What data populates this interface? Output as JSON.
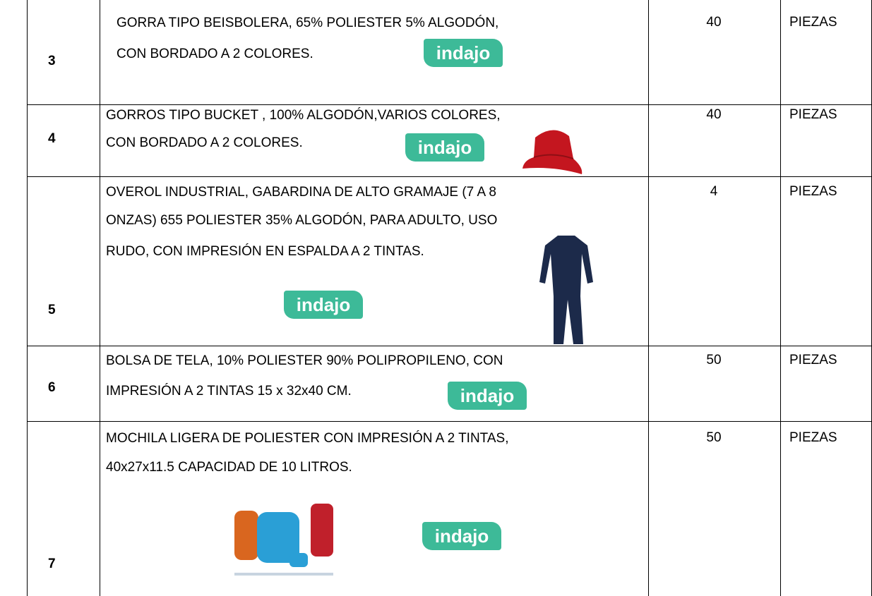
{
  "table": {
    "rows": [
      {
        "number": "3",
        "description": [
          "GORRA TIPO BEISBOLERA, 65% POLIESTER 5% ALGODÓN,",
          "CON BORDADO A 2 COLORES."
        ],
        "quantity": "40",
        "unit": "PIEZAS",
        "logo": "indajo"
      },
      {
        "number": "4",
        "description": [
          "GORROS TIPO BUCKET , 100% ALGODÓN,VARIOS COLORES,",
          "CON BORDADO A 2 COLORES."
        ],
        "quantity": "40",
        "unit": "PIEZAS",
        "logo": "indajo"
      },
      {
        "number": "5",
        "description": [
          "OVEROL INDUSTRIAL, GABARDINA DE ALTO GRAMAJE (7 A 8",
          "ONZAS) 655 POLIESTER 35% ALGODÓN, PARA ADULTO, USO",
          "RUDO, CON IMPRESIÓN EN ESPALDA A 2 TINTAS."
        ],
        "quantity": "4",
        "unit": "PIEZAS",
        "logo": "indajo"
      },
      {
        "number": "6",
        "description": [
          "BOLSA DE TELA, 10% POLIESTER 90% POLIPROPILENO, CON",
          "IMPRESIÓN A 2 TINTAS 15 x 32x40 CM."
        ],
        "quantity": "50",
        "unit": "PIEZAS",
        "logo": "indajo"
      },
      {
        "number": "7",
        "description": [
          "MOCHILA LIGERA DE POLIESTER CON IMPRESIÓN A 2 TINTAS,",
          "40x27x11.5 CAPACIDAD DE 10 LITROS."
        ],
        "quantity": "50",
        "unit": "PIEZAS",
        "logo": "indajo"
      }
    ]
  }
}
